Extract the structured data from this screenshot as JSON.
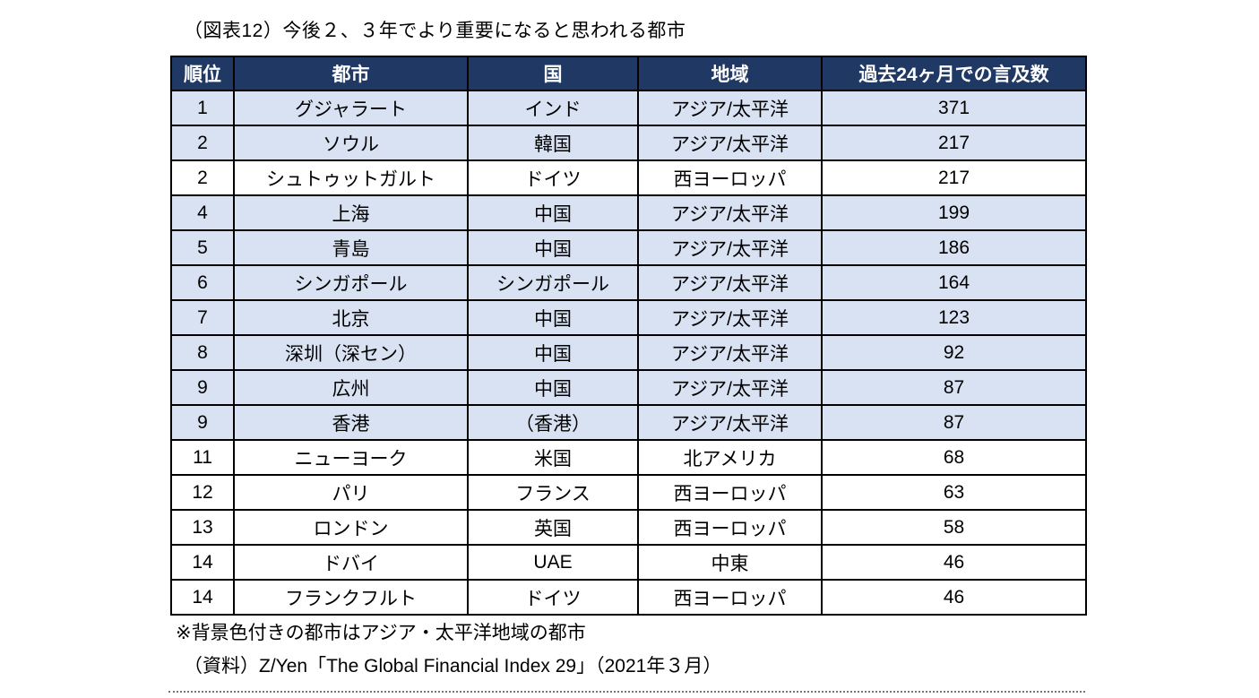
{
  "figure": {
    "title": "（図表12）今後２、３年でより重要になると思われる都市",
    "note": "※背景色付きの都市はアジア・太平洋地域の都市",
    "source": "（資料）Z/Yen「The Global Financial Index 29」（2021年３月）"
  },
  "colors": {
    "header_bg": "#1f3864",
    "header_text": "#ffffff",
    "highlight_bg": "#d9e2f3",
    "border": "#000000"
  },
  "chart_data": {
    "type": "table",
    "title": "（図表12）今後２、３年でより重要になると思われる都市",
    "columns": [
      "順位",
      "都市",
      "国",
      "地域",
      "過去24ヶ月での言及数"
    ],
    "highlight_meaning": "アジア・太平洋地域の都市",
    "rows": [
      {
        "rank": 1,
        "city": "グジャラート",
        "country": "インド",
        "region": "アジア/太平洋",
        "mentions": 371,
        "highlighted": true
      },
      {
        "rank": 2,
        "city": "ソウル",
        "country": "韓国",
        "region": "アジア/太平洋",
        "mentions": 217,
        "highlighted": true
      },
      {
        "rank": 2,
        "city": "シュトゥットガルト",
        "country": "ドイツ",
        "region": "西ヨーロッパ",
        "mentions": 217,
        "highlighted": false
      },
      {
        "rank": 4,
        "city": "上海",
        "country": "中国",
        "region": "アジア/太平洋",
        "mentions": 199,
        "highlighted": true
      },
      {
        "rank": 5,
        "city": "青島",
        "country": "中国",
        "region": "アジア/太平洋",
        "mentions": 186,
        "highlighted": true
      },
      {
        "rank": 6,
        "city": "シンガポール",
        "country": "シンガポール",
        "region": "アジア/太平洋",
        "mentions": 164,
        "highlighted": true
      },
      {
        "rank": 7,
        "city": "北京",
        "country": "中国",
        "region": "アジア/太平洋",
        "mentions": 123,
        "highlighted": true
      },
      {
        "rank": 8,
        "city": "深圳（深セン）",
        "country": "中国",
        "region": "アジア/太平洋",
        "mentions": 92,
        "highlighted": true
      },
      {
        "rank": 9,
        "city": "広州",
        "country": "中国",
        "region": "アジア/太平洋",
        "mentions": 87,
        "highlighted": true
      },
      {
        "rank": 9,
        "city": "香港",
        "country": "（香港）",
        "region": "アジア/太平洋",
        "mentions": 87,
        "highlighted": true
      },
      {
        "rank": 11,
        "city": "ニューヨーク",
        "country": "米国",
        "region": "北アメリカ",
        "mentions": 68,
        "highlighted": false
      },
      {
        "rank": 12,
        "city": "パリ",
        "country": "フランス",
        "region": "西ヨーロッパ",
        "mentions": 63,
        "highlighted": false
      },
      {
        "rank": 13,
        "city": "ロンドン",
        "country": "英国",
        "region": "西ヨーロッパ",
        "mentions": 58,
        "highlighted": false
      },
      {
        "rank": 14,
        "city": "ドバイ",
        "country": "UAE",
        "region": "中東",
        "mentions": 46,
        "highlighted": false
      },
      {
        "rank": 14,
        "city": "フランクフルト",
        "country": "ドイツ",
        "region": "西ヨーロッパ",
        "mentions": 46,
        "highlighted": false
      }
    ]
  }
}
